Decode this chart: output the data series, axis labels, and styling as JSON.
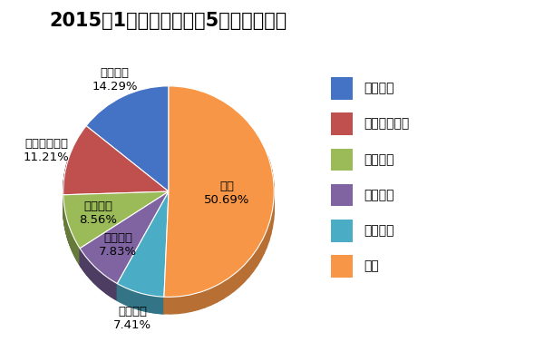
{
  "title": "2015年1月商用车销量前5企业市场份额",
  "labels": [
    "北汽福田",
    "东风汽车公司",
    "江铃控股",
    "安徽江淮",
    "金杯汽车",
    "其他"
  ],
  "values": [
    14.29,
    11.21,
    8.56,
    7.83,
    7.41,
    50.69
  ],
  "colors": [
    "#4472C4",
    "#C0504D",
    "#9BBB59",
    "#8064A2",
    "#4BACC6",
    "#F79646"
  ],
  "edge_colors": [
    "#2A52A0",
    "#9A3030",
    "#7A9A3A",
    "#604880",
    "#2A8AAA",
    "#C07020"
  ],
  "legend_labels": [
    "北汽福田",
    "东风汽车公司",
    "江铃控股",
    "安徽江淮",
    "金杯汽车",
    "其他"
  ],
  "startangle": 90,
  "background_color": "#FFFFFF",
  "title_fontsize": 15,
  "label_fontsize": 9.5,
  "legend_fontsize": 10,
  "pct_labels": [
    "14.29%",
    "11.21%",
    "8.56%",
    "7.83%",
    "7.41%",
    "50.69%"
  ],
  "shadow_depth": 0.08,
  "ellipse_ratio": 0.5
}
